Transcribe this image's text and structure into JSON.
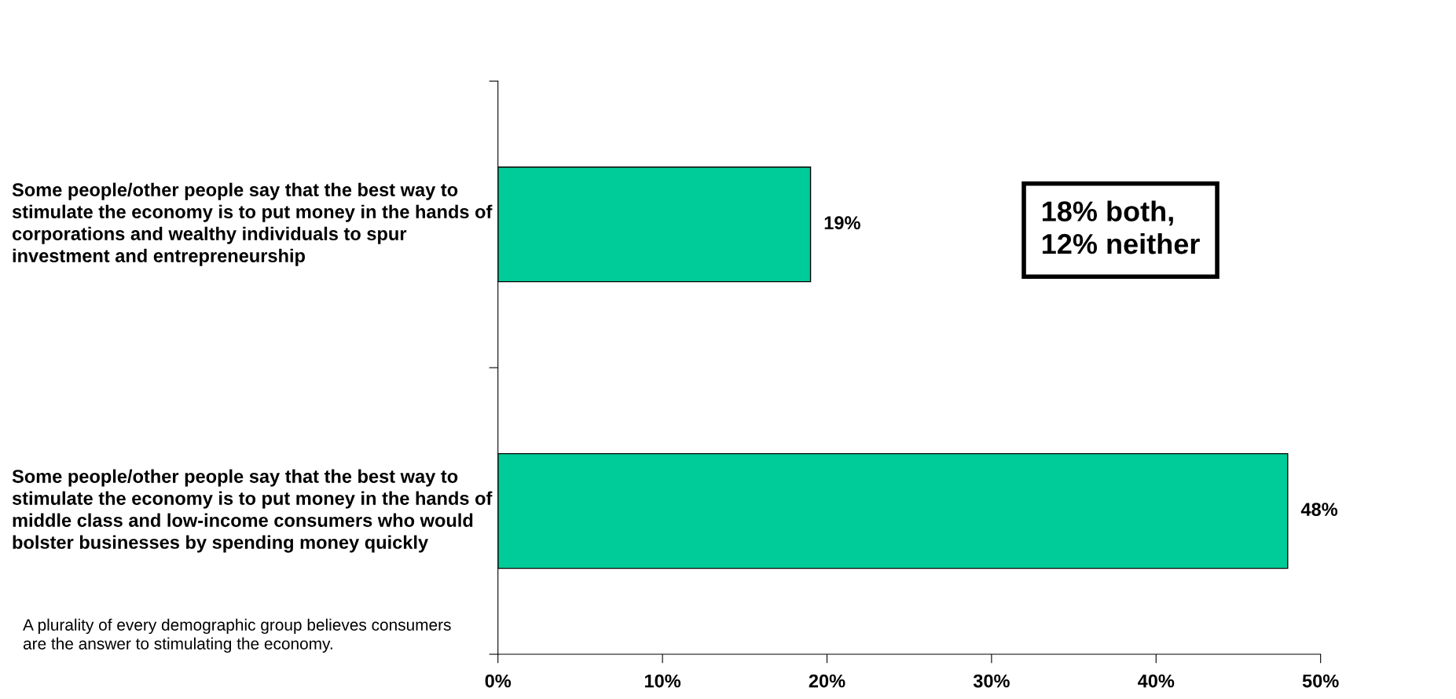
{
  "chart_data": {
    "type": "bar",
    "orientation": "horizontal",
    "categories": [
      "Some people/other people say that the best way to stimulate the economy is to put money in the hands of corporations and wealthy individuals to spur investment and entrepreneurship",
      "Some people/other people say that the best way to stimulate the economy is to put money in the hands of middle class and low-income consumers who would bolster businesses by spending money quickly"
    ],
    "values": [
      19,
      48
    ],
    "color": "#00cc99",
    "value_labels": [
      "19%",
      "48%"
    ],
    "xlim": [
      0,
      50
    ],
    "xticks": [
      {
        "value": 0,
        "label": "0%"
      },
      {
        "value": 10,
        "label": "10%"
      },
      {
        "value": 20,
        "label": "20%"
      },
      {
        "value": 30,
        "label": "30%"
      },
      {
        "value": 40,
        "label": "40%"
      },
      {
        "value": 50,
        "label": "50%"
      }
    ],
    "annotations": [
      "18% both,\n12% neither",
      "A plurality of every demographic group believes consumers are the answer to stimulating the economy."
    ],
    "grid": false,
    "legend": false
  }
}
